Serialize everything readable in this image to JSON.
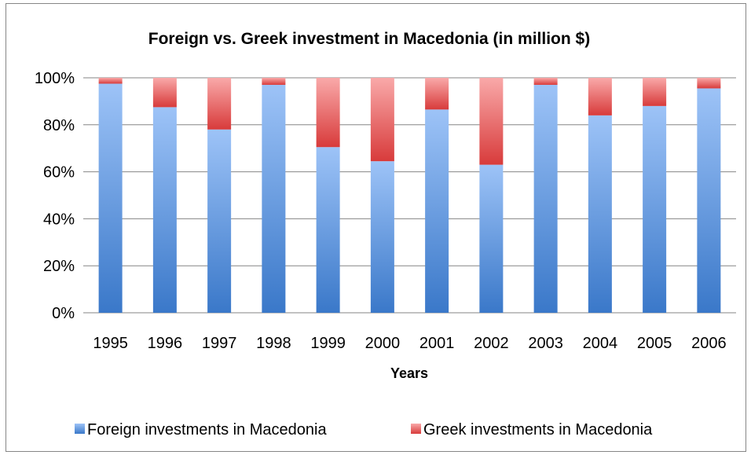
{
  "colors": {
    "foreign_light": "#9DC3F7",
    "foreign_dark": "#3A78C9",
    "greek_light": "#F9A9A9",
    "greek_dark": "#D83B3B",
    "grid": "#868686"
  },
  "chart_data": {
    "type": "bar",
    "stacked": "percent",
    "title": "Foreign vs. Greek investment in Macedonia (in million $)",
    "xlabel": "Years",
    "ylabel": "",
    "ylim": [
      0,
      100
    ],
    "y_ticks": [
      "0%",
      "20%",
      "40%",
      "60%",
      "80%",
      "100%"
    ],
    "categories": [
      "1995",
      "1996",
      "1997",
      "1998",
      "1999",
      "2000",
      "2001",
      "2002",
      "2003",
      "2004",
      "2005",
      "2006"
    ],
    "series": [
      {
        "name": "Foreign investments in Macedonia",
        "values": [
          97.5,
          87.5,
          78,
          97,
          70.5,
          64.5,
          86.5,
          63,
          97,
          84,
          88,
          95.5
        ]
      },
      {
        "name": "Greek investments in Macedonia",
        "values": [
          2.5,
          12.5,
          22,
          3,
          29.5,
          35.5,
          13.5,
          37,
          3,
          16,
          12,
          4.5
        ]
      }
    ],
    "grid": true,
    "legend_position": "bottom"
  }
}
